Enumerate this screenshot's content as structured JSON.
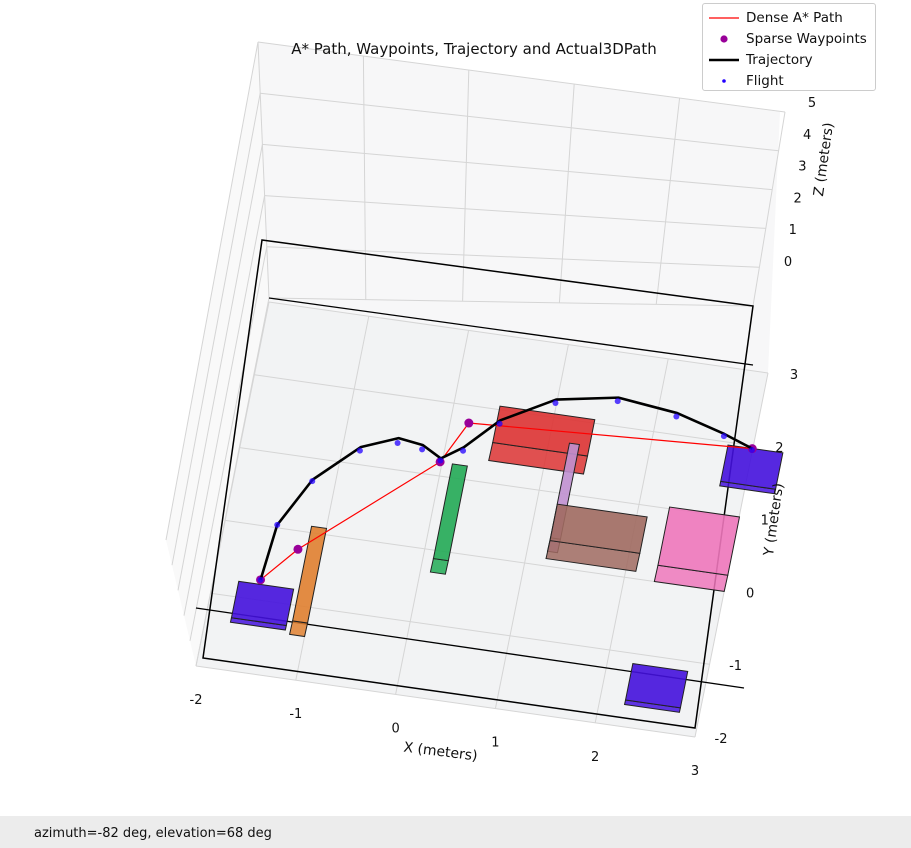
{
  "chart_data": {
    "type": "3d-line",
    "title": "A* Path, Waypoints, Trajectory and Actual3DPath",
    "xlabel": "X (meters)",
    "ylabel": "Y (meters)",
    "zlabel": "Z (meters)",
    "xlim": [
      -2,
      3
    ],
    "ylim": [
      -2,
      3
    ],
    "zlim": [
      0,
      5
    ],
    "x_ticks": [
      "-2",
      "-1",
      "0",
      "1",
      "2",
      "3"
    ],
    "y_ticks": [
      "-2",
      "-1",
      "0",
      "1",
      "2",
      "3"
    ],
    "z_ticks": [
      "0",
      "1",
      "2",
      "3",
      "4",
      "5"
    ],
    "grid": true,
    "view": {
      "azimuth": -82,
      "elevation": 68
    },
    "legend_position": "top-right",
    "legend": [
      "Dense A* Path",
      "Sparse Waypoints",
      "Trajectory",
      "Flight"
    ],
    "series": [
      {
        "name": "Dense A* Path",
        "color": "#ff0000",
        "style": "line",
        "points": [
          [
            -1.5,
            -1.0,
            1.0
          ],
          [
            -1.2,
            -0.5,
            1.0
          ],
          [
            0.0,
            1.0,
            1.0
          ],
          [
            0.2,
            1.6,
            1.0
          ],
          [
            3.0,
            1.8,
            1.0
          ]
        ]
      },
      {
        "name": "Sparse Waypoints",
        "color": "#990099",
        "style": "markers",
        "points": [
          [
            -1.5,
            -1.0,
            1.0
          ],
          [
            -1.2,
            -0.5,
            1.0
          ],
          [
            0.0,
            1.0,
            1.0
          ],
          [
            0.2,
            1.6,
            1.0
          ],
          [
            3.0,
            1.8,
            1.0
          ]
        ]
      },
      {
        "name": "Trajectory",
        "color": "#000000",
        "style": "line",
        "points": [
          [
            -1.5,
            -1.0,
            1.0
          ],
          [
            -1.45,
            -0.2,
            1.0
          ],
          [
            -1.2,
            0.5,
            1.0
          ],
          [
            -0.8,
            1.05,
            1.0
          ],
          [
            -0.45,
            1.25,
            1.0
          ],
          [
            -0.2,
            1.2,
            1.0
          ],
          [
            0.0,
            1.05,
            1.0
          ],
          [
            0.2,
            1.25,
            1.0
          ],
          [
            0.5,
            1.7,
            1.0
          ],
          [
            1.0,
            2.1,
            1.0
          ],
          [
            1.6,
            2.25,
            1.0
          ],
          [
            2.2,
            2.15,
            1.0
          ],
          [
            2.7,
            1.95,
            1.0
          ],
          [
            3.0,
            1.8,
            1.0
          ]
        ]
      },
      {
        "name": "Flight",
        "color": "#2200ff",
        "style": "markers",
        "points": [
          [
            -1.5,
            -1.0,
            1.0
          ],
          [
            -1.45,
            -0.2,
            1.0
          ],
          [
            -1.2,
            0.48,
            1.0
          ],
          [
            -0.8,
            1.0,
            1.0
          ],
          [
            -0.45,
            1.18,
            1.0
          ],
          [
            -0.2,
            1.14,
            1.0
          ],
          [
            0.0,
            1.02,
            1.0
          ],
          [
            0.2,
            1.2,
            1.0
          ],
          [
            0.5,
            1.65,
            1.0
          ],
          [
            1.0,
            2.05,
            1.0
          ],
          [
            1.6,
            2.2,
            1.0
          ],
          [
            2.2,
            2.1,
            1.0
          ],
          [
            2.7,
            1.92,
            1.0
          ],
          [
            3.0,
            1.78,
            1.0
          ]
        ]
      }
    ],
    "obstacles": [
      {
        "name": "start-pad",
        "color": "#4411dd",
        "x": [
          -1.75,
          -1.2
        ],
        "y": [
          -1.35,
          -0.85
        ],
        "z": [
          0,
          0.5
        ]
      },
      {
        "name": "goal-pad",
        "color": "#4411dd",
        "x": [
          2.75,
          3.3
        ],
        "y": [
          1.4,
          1.9
        ],
        "z": [
          0,
          0.5
        ]
      },
      {
        "name": "corner-pad",
        "color": "#4411dd",
        "x": [
          2.25,
          2.8
        ],
        "y": [
          -1.7,
          -1.2
        ],
        "z": [
          0,
          0.5
        ]
      },
      {
        "name": "orange-wall",
        "color": "#e08030",
        "x": [
          -1.15,
          -1.0
        ],
        "y": [
          -1.4,
          -0.1
        ],
        "z": [
          0,
          1.5
        ]
      },
      {
        "name": "green-wall",
        "color": "#22aa55",
        "x": [
          0.1,
          0.25
        ],
        "y": [
          -0.3,
          1.0
        ],
        "z": [
          0,
          1.5
        ]
      },
      {
        "name": "red-box",
        "color": "#dd3333",
        "x": [
          0.45,
          1.4
        ],
        "y": [
          1.3,
          1.8
        ],
        "z": [
          0,
          2.0
        ]
      },
      {
        "name": "violet-wall",
        "color": "#c090d0",
        "x": [
          1.2,
          1.3
        ],
        "y": [
          0.2,
          1.5
        ],
        "z": [
          0,
          1.5
        ]
      },
      {
        "name": "brown-box",
        "color": "#a06a60",
        "x": [
          1.2,
          2.1
        ],
        "y": [
          0.1,
          0.6
        ],
        "z": [
          0,
          2.0
        ]
      },
      {
        "name": "pink-box",
        "color": "#ee77bb",
        "x": [
          2.3,
          3.0
        ],
        "y": [
          0.0,
          0.8
        ],
        "z": [
          0,
          1.8
        ]
      }
    ]
  },
  "status": {
    "view_text": "azimuth=-82 deg, elevation=68 deg"
  },
  "legend_icons": {
    "line_icon": "line-swatch",
    "marker_icon": "dot-swatch"
  }
}
